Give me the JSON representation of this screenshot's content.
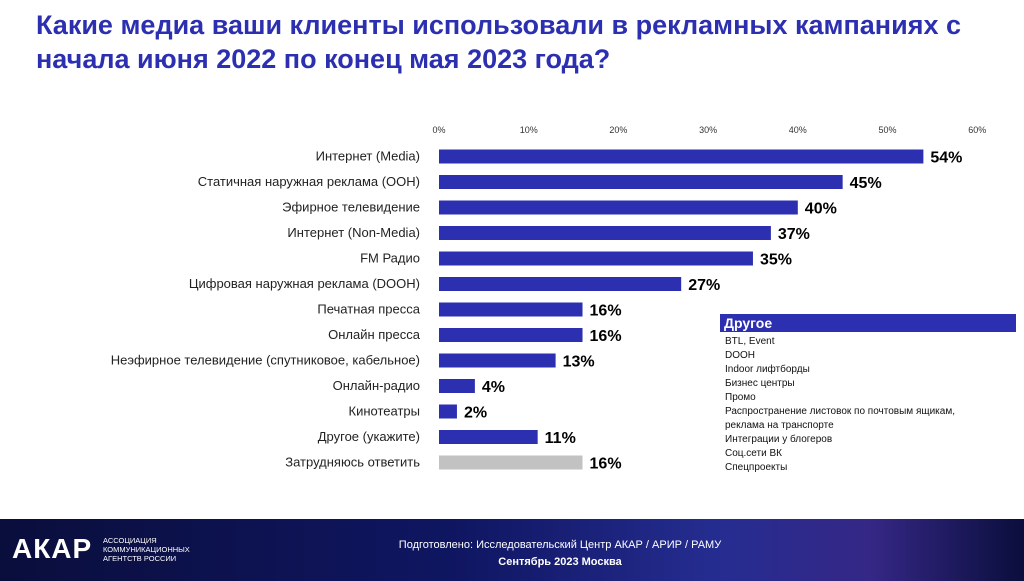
{
  "title": "Какие медиа ваши клиенты использовали в рекламных кампаниях с начала июня 2022 по конец мая 2023 года?",
  "colors": {
    "bar": "#2b2fb0",
    "bar_muted": "#c2c2c2",
    "title": "#2b2fb0",
    "footer_bg": "#0a0e3c"
  },
  "chart_data": {
    "type": "bar",
    "orientation": "horizontal",
    "title": "",
    "xlabel": "",
    "ylabel": "",
    "xlim": [
      0,
      60
    ],
    "ticks": [
      "0%",
      "10%",
      "20%",
      "30%",
      "40%",
      "50%",
      "60%"
    ],
    "grid": false,
    "categories": [
      "Интернет (Media)",
      "Статичная наружная реклама (OOH)",
      "Эфирное телевидение",
      "Интернет (Non-Media)",
      "FM Радио",
      "Цифровая наружная реклама (DOOH)",
      "Печатная пресса",
      "Онлайн пресса",
      "Неэфирное  телевидение (спутниковое, кабельное)",
      "Онлайн-радио",
      "Кинотеатры",
      "Другое (укажите)",
      "Затрудняюсь ответить"
    ],
    "values": [
      54,
      45,
      40,
      37,
      35,
      27,
      16,
      16,
      13,
      4,
      2,
      11,
      16
    ],
    "labels": [
      "54%",
      "45%",
      "40%",
      "37%",
      "35%",
      "27%",
      "16%",
      "16%",
      "13%",
      "4%",
      "2%",
      "11%",
      "16%"
    ],
    "muted_index": 12
  },
  "other_box": {
    "title": "Другое",
    "items": [
      "BTL, Event",
      "DOOH",
      "Indoor лифтборды",
      "Бизнес центры",
      "Промо",
      "Распространение листовок по почтовым ящикам,",
      "реклама на транспорте",
      "Интеграции у блогеров",
      "Соц.сети ВК",
      "Спецпроекты"
    ]
  },
  "footer": {
    "logo": "АКАР",
    "logo_lines": [
      "АССОЦИАЦИЯ",
      "КОММУНИКАЦИОННЫХ",
      "АГЕНТСТВ РОССИИ"
    ],
    "credit": "Подготовлено: Исследовательский Центр АКАР / АРИР / РАМУ",
    "date": "Сентябрь 2023 Москва"
  }
}
